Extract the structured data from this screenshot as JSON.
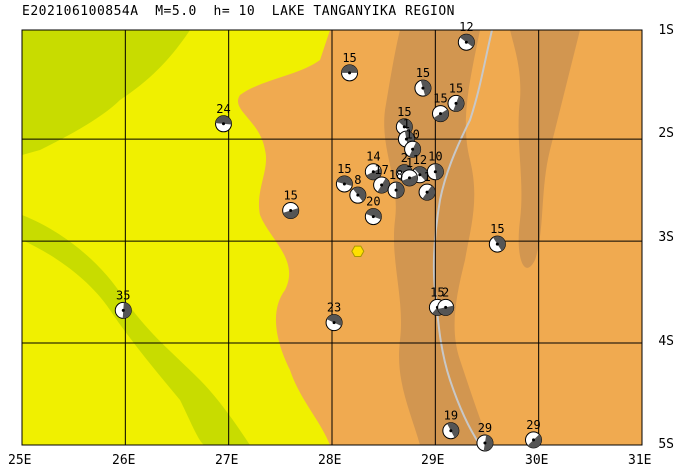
{
  "title": "E202106100854A  M=5.0  h= 10  LAKE TANGANYIKA REGION",
  "colors": {
    "land_low": "#f0f000",
    "lake": "#c8dc00",
    "highland": "#f0aa50",
    "mountain": "#d29650",
    "grid": "#000000",
    "river": "#c8c8c8",
    "epicenter": "#ffe000"
  },
  "lat_labels": [
    "1S",
    "2S",
    "3S",
    "4S",
    "5S"
  ],
  "lon_labels": [
    "25E",
    "26E",
    "27E",
    "28E",
    "29E",
    "30E",
    "31E"
  ],
  "epicenter": {
    "lon": 28.25,
    "lat": -3.1
  },
  "events": [
    {
      "depth": "15",
      "lon": 28.17,
      "lat": -1.35
    },
    {
      "depth": "12",
      "lon": 29.3,
      "lat": -1.05
    },
    {
      "depth": "15",
      "lon": 28.88,
      "lat": -1.5
    },
    {
      "depth": "15",
      "lon": 29.2,
      "lat": -1.65
    },
    {
      "depth": "15",
      "lon": 29.05,
      "lat": -1.75
    },
    {
      "depth": "24",
      "lon": 26.95,
      "lat": -1.85
    },
    {
      "depth": "15",
      "lon": 28.7,
      "lat": -1.88
    },
    {
      "depth": "1",
      "lon": 28.72,
      "lat": -2.0
    },
    {
      "depth": "10",
      "lon": 28.78,
      "lat": -2.1
    },
    {
      "depth": "14",
      "lon": 28.4,
      "lat": -2.32
    },
    {
      "depth": "2",
      "lon": 28.7,
      "lat": -2.33
    },
    {
      "depth": "12",
      "lon": 28.85,
      "lat": -2.35
    },
    {
      "depth": "10",
      "lon": 29.0,
      "lat": -2.32
    },
    {
      "depth": "17",
      "lon": 28.48,
      "lat": -2.45
    },
    {
      "depth": "1",
      "lon": 28.75,
      "lat": -2.38
    },
    {
      "depth": "15",
      "lon": 28.12,
      "lat": -2.44
    },
    {
      "depth": "8",
      "lon": 28.25,
      "lat": -2.55
    },
    {
      "depth": "18",
      "lon": 28.62,
      "lat": -2.5
    },
    {
      "depth": "1",
      "lon": 28.92,
      "lat": -2.52
    },
    {
      "depth": "15",
      "lon": 27.6,
      "lat": -2.7
    },
    {
      "depth": "20",
      "lon": 28.4,
      "lat": -2.76
    },
    {
      "depth": "15",
      "lon": 29.6,
      "lat": -3.03
    },
    {
      "depth": "35",
      "lon": 25.98,
      "lat": -3.68
    },
    {
      "depth": "15",
      "lon": 29.02,
      "lat": -3.65
    },
    {
      "depth": "2",
      "lon": 29.1,
      "lat": -3.65
    },
    {
      "depth": "23",
      "lon": 28.02,
      "lat": -3.8
    },
    {
      "depth": "19",
      "lon": 29.15,
      "lat": -4.86
    },
    {
      "depth": "29",
      "lon": 29.48,
      "lat": -4.98
    },
    {
      "depth": "29",
      "lon": 29.95,
      "lat": -4.95
    }
  ]
}
